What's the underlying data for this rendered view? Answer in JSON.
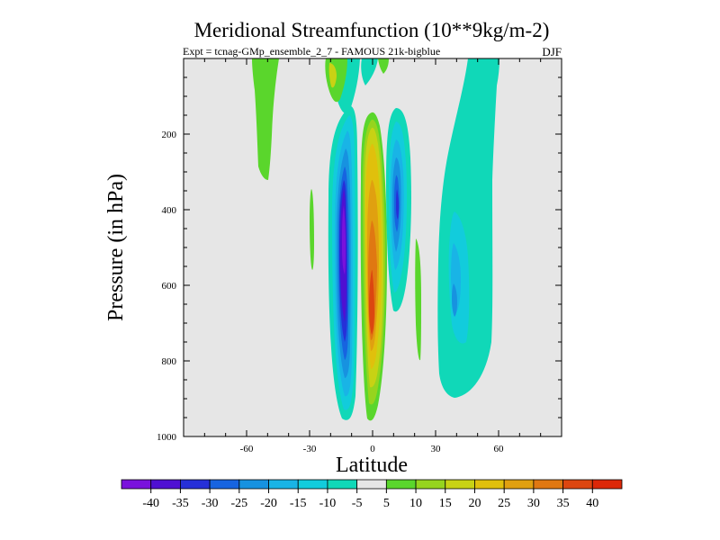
{
  "chart_data": {
    "type": "contour",
    "title": "Meridional Streamfunction (10**9kg/m-2)",
    "subtitle_left": "Expt = tcnag-GMp_ensemble_2_7 - FAMOUS 21k-bigblue",
    "subtitle_right": "DJF",
    "xlabel": "Latitude",
    "ylabel": "Pressure (in hPa)",
    "xlim": [
      -90,
      90
    ],
    "ylim": [
      1000,
      0
    ],
    "x_ticks": [
      -60,
      -30,
      0,
      30,
      60
    ],
    "x_tick_labels": [
      "-60",
      "-30",
      "0",
      "30",
      "60"
    ],
    "y_ticks": [
      200,
      400,
      600,
      800,
      1000
    ],
    "y_tick_labels": [
      "200",
      "400",
      "600",
      "800",
      "1000"
    ],
    "colorbar": {
      "labels": [
        "-40",
        "-35",
        "-30",
        "-25",
        "-20",
        "-15",
        "-10",
        "-5",
        "5",
        "10",
        "15",
        "20",
        "25",
        "30",
        "35",
        "40"
      ],
      "colors": [
        "#7a12dc",
        "#4f10d2",
        "#2630d8",
        "#1764e0",
        "#1792e0",
        "#19b4e6",
        "#12ccdc",
        "#10d8b8",
        "#e6e6e6",
        "#5ad62c",
        "#96d41e",
        "#c8d214",
        "#e0c00c",
        "#e0a010",
        "#e07812",
        "#dc4610",
        "#dc2808"
      ]
    },
    "features": [
      {
        "name": "southern-negative-cell",
        "lat_center": -14,
        "pressure_range": [
          120,
          960
        ],
        "min_value": -40
      },
      {
        "name": "equatorial-positive-cell",
        "lat_center": 0,
        "pressure_range": [
          120,
          920
        ],
        "max_value": 35
      },
      {
        "name": "northern-negative-cell",
        "lat_center": 13,
        "pressure_range": [
          120,
          700
        ],
        "min_value": -30
      },
      {
        "name": "northern-extratropical-cell",
        "lat_center": 45,
        "pressure_range": [
          0,
          900
        ],
        "min_value": -25
      }
    ]
  }
}
